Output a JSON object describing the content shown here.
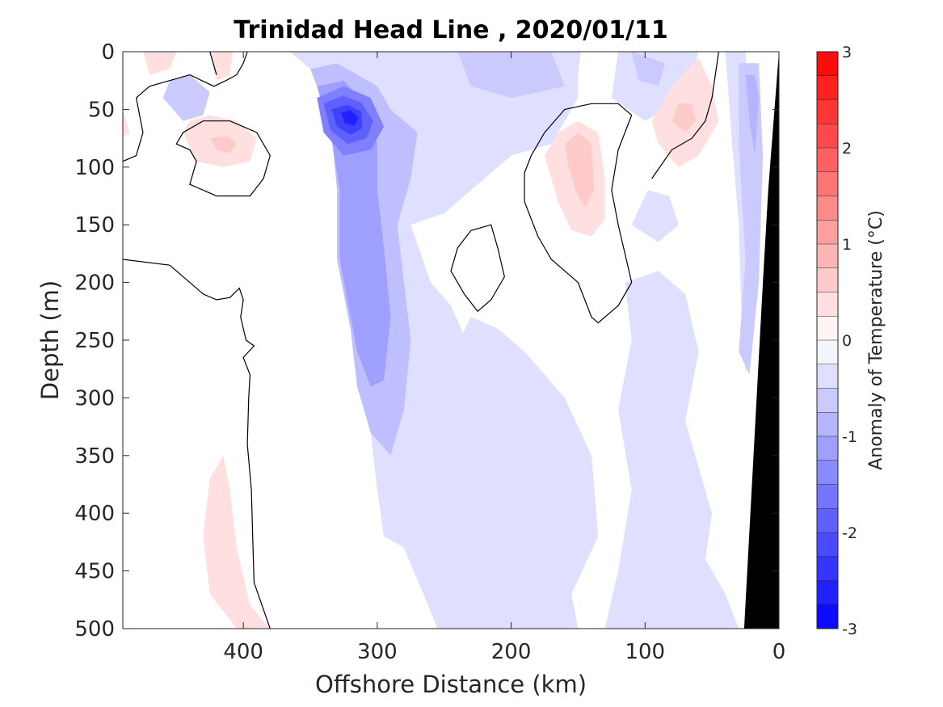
{
  "chart_data": {
    "type": "heatmap",
    "title": "Trinidad Head Line , 2020/01/11",
    "xlabel": "Offshore Distance (km)",
    "ylabel": "Depth (m)",
    "xlim": [
      490,
      0
    ],
    "ylim": [
      500,
      0
    ],
    "x_reversed": true,
    "y_reversed": true,
    "x_ticks": [
      400,
      300,
      200,
      100,
      0
    ],
    "y_ticks": [
      0,
      50,
      100,
      150,
      200,
      250,
      300,
      350,
      400,
      450,
      500
    ],
    "colorbar": {
      "label": "Anomaly of Temperature (°C)",
      "range": [
        -3,
        3
      ],
      "levels_step": 0.25,
      "ticks": [
        3,
        2,
        1,
        0,
        -1,
        -2,
        -3
      ],
      "low_color": "#0000ff",
      "mid_color": "#ffffff",
      "high_color": "#ff0000"
    },
    "bathymetry_color": "#000000",
    "anomaly_features": [
      {
        "name": "strong cold core",
        "x": 322,
        "depth": 55,
        "value": -2.5
      },
      {
        "name": "cold column",
        "x": 320,
        "depth": 200,
        "value": -1.25
      },
      {
        "name": "subsurface cold tongue",
        "x": 310,
        "depth": 280,
        "value": -0.75
      },
      {
        "name": "near-surface cold band",
        "x": 195,
        "depth": 35,
        "value": -0.5
      },
      {
        "name": "near-surface cold patch",
        "x": 100,
        "depth": 15,
        "value": -0.5
      },
      {
        "name": "inshore cold strip",
        "x": 25,
        "depth": 100,
        "value": -0.75
      },
      {
        "name": "small cold eddy",
        "x": 445,
        "depth": 45,
        "value": -0.5
      },
      {
        "name": "warm lens",
        "x": 418,
        "depth": 80,
        "value": 0.5
      },
      {
        "name": "warm plume",
        "x": 148,
        "depth": 100,
        "value": 0.75
      },
      {
        "name": "warm lens inshore",
        "x": 70,
        "depth": 55,
        "value": 0.5
      },
      {
        "name": "deep warm streak",
        "x": 405,
        "depth": 430,
        "value": 0.25
      }
    ]
  }
}
